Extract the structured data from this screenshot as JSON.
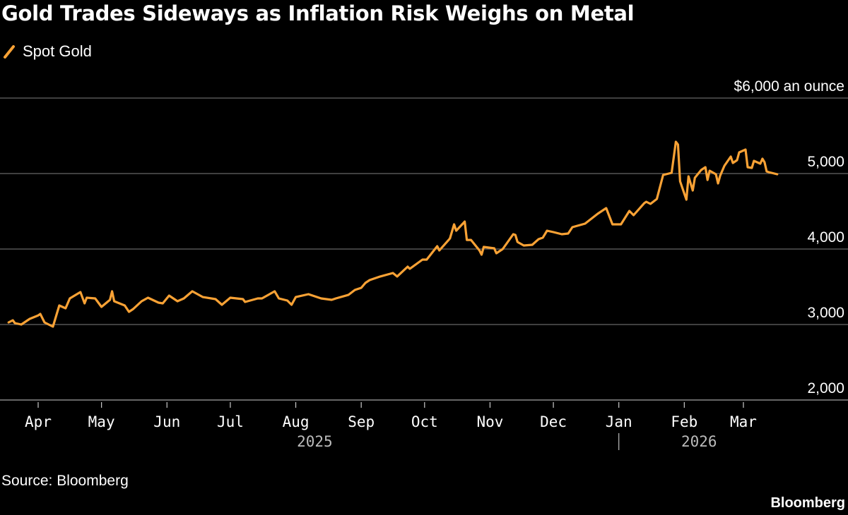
{
  "title": "Gold Trades Sideways as Inflation Risk Weighs on Metal",
  "source": "Source: Bloomberg",
  "logo": "Bloomberg",
  "colors": {
    "background": "#000000",
    "series": "#f9a235",
    "grid": "#666666"
  },
  "chart_data": {
    "type": "line",
    "title": "Gold Trades Sideways as Inflation Risk Weighs on Metal",
    "legend": {
      "position": "top-left",
      "icon": "slash-line-icon"
    },
    "y_unit_label": "$6,000 an ounce",
    "ylim": [
      2000,
      6000
    ],
    "y_ticks": [
      {
        "value": 6000,
        "label": "$6,000 an ounce"
      },
      {
        "value": 5000,
        "label": "5,000"
      },
      {
        "value": 4000,
        "label": "4,000"
      },
      {
        "value": 3000,
        "label": "3,000"
      },
      {
        "value": 2000,
        "label": "2,000"
      }
    ],
    "y_axis_side": "right",
    "grid": true,
    "x_ticks": [
      {
        "date": "2025-04-01",
        "label": "Apr"
      },
      {
        "date": "2025-05-01",
        "label": "May"
      },
      {
        "date": "2025-06-01",
        "label": "Jun"
      },
      {
        "date": "2025-07-01",
        "label": "Jul"
      },
      {
        "date": "2025-08-01",
        "label": "Aug"
      },
      {
        "date": "2025-09-01",
        "label": "Sep"
      },
      {
        "date": "2025-10-01",
        "label": "Oct"
      },
      {
        "date": "2025-11-01",
        "label": "Nov"
      },
      {
        "date": "2025-12-01",
        "label": "Dec"
      },
      {
        "date": "2026-01-01",
        "label": "Jan"
      },
      {
        "date": "2026-02-01",
        "label": "Feb"
      },
      {
        "date": "2026-03-01",
        "label": "Mar"
      }
    ],
    "year_labels": [
      {
        "date": "2025-08-10",
        "label": "2025"
      },
      {
        "date": "2026-02-08",
        "label": "2026"
      }
    ],
    "year_divider": "2026-01-01",
    "series": [
      {
        "name": "Spot Gold",
        "color": "#f9a235",
        "points": [
          [
            "2025-03-18",
            3028
          ],
          [
            "2025-03-20",
            3056
          ],
          [
            "2025-03-21",
            3019
          ],
          [
            "2025-03-24",
            3000
          ],
          [
            "2025-03-28",
            3075
          ],
          [
            "2025-04-01",
            3121
          ],
          [
            "2025-04-02",
            3140
          ],
          [
            "2025-04-04",
            3028
          ],
          [
            "2025-04-08",
            2972
          ],
          [
            "2025-04-11",
            3252
          ],
          [
            "2025-04-14",
            3215
          ],
          [
            "2025-04-16",
            3346
          ],
          [
            "2025-04-21",
            3430
          ],
          [
            "2025-04-23",
            3280
          ],
          [
            "2025-04-24",
            3355
          ],
          [
            "2025-04-28",
            3346
          ],
          [
            "2025-05-01",
            3234
          ],
          [
            "2025-05-05",
            3327
          ],
          [
            "2025-05-06",
            3440
          ],
          [
            "2025-05-07",
            3308
          ],
          [
            "2025-05-12",
            3252
          ],
          [
            "2025-05-14",
            3168
          ],
          [
            "2025-05-16",
            3206
          ],
          [
            "2025-05-20",
            3308
          ],
          [
            "2025-05-23",
            3355
          ],
          [
            "2025-05-28",
            3290
          ],
          [
            "2025-05-30",
            3280
          ],
          [
            "2025-06-02",
            3383
          ],
          [
            "2025-06-06",
            3308
          ],
          [
            "2025-06-09",
            3346
          ],
          [
            "2025-06-13",
            3440
          ],
          [
            "2025-06-18",
            3364
          ],
          [
            "2025-06-24",
            3336
          ],
          [
            "2025-06-27",
            3262
          ],
          [
            "2025-07-01",
            3355
          ],
          [
            "2025-07-07",
            3336
          ],
          [
            "2025-07-08",
            3299
          ],
          [
            "2025-07-14",
            3346
          ],
          [
            "2025-07-16",
            3346
          ],
          [
            "2025-07-22",
            3440
          ],
          [
            "2025-07-24",
            3346
          ],
          [
            "2025-07-28",
            3318
          ],
          [
            "2025-07-30",
            3262
          ],
          [
            "2025-08-01",
            3364
          ],
          [
            "2025-08-07",
            3402
          ],
          [
            "2025-08-13",
            3346
          ],
          [
            "2025-08-18",
            3327
          ],
          [
            "2025-08-20",
            3346
          ],
          [
            "2025-08-26",
            3393
          ],
          [
            "2025-08-29",
            3458
          ],
          [
            "2025-09-01",
            3486
          ],
          [
            "2025-09-03",
            3551
          ],
          [
            "2025-09-05",
            3589
          ],
          [
            "2025-09-10",
            3636
          ],
          [
            "2025-09-16",
            3682
          ],
          [
            "2025-09-18",
            3636
          ],
          [
            "2025-09-23",
            3766
          ],
          [
            "2025-09-24",
            3738
          ],
          [
            "2025-09-30",
            3860
          ],
          [
            "2025-10-02",
            3860
          ],
          [
            "2025-10-07",
            4037
          ],
          [
            "2025-10-08",
            3981
          ],
          [
            "2025-10-13",
            4140
          ],
          [
            "2025-10-15",
            4327
          ],
          [
            "2025-10-16",
            4243
          ],
          [
            "2025-10-20",
            4364
          ],
          [
            "2025-10-21",
            4121
          ],
          [
            "2025-10-23",
            4121
          ],
          [
            "2025-10-27",
            3981
          ],
          [
            "2025-10-28",
            3925
          ],
          [
            "2025-10-29",
            4028
          ],
          [
            "2025-11-03",
            4009
          ],
          [
            "2025-11-04",
            3944
          ],
          [
            "2025-11-07",
            4000
          ],
          [
            "2025-11-12",
            4196
          ],
          [
            "2025-11-13",
            4187
          ],
          [
            "2025-11-14",
            4093
          ],
          [
            "2025-11-17",
            4047
          ],
          [
            "2025-11-21",
            4056
          ],
          [
            "2025-11-24",
            4131
          ],
          [
            "2025-11-26",
            4150
          ],
          [
            "2025-11-28",
            4243
          ],
          [
            "2025-12-01",
            4224
          ],
          [
            "2025-12-05",
            4196
          ],
          [
            "2025-12-08",
            4206
          ],
          [
            "2025-12-10",
            4290
          ],
          [
            "2025-12-16",
            4336
          ],
          [
            "2025-12-22",
            4467
          ],
          [
            "2025-12-26",
            4542
          ],
          [
            "2025-12-29",
            4327
          ],
          [
            "2026-01-02",
            4327
          ],
          [
            "2026-01-06",
            4505
          ],
          [
            "2026-01-08",
            4449
          ],
          [
            "2026-01-13",
            4607
          ],
          [
            "2026-01-14",
            4626
          ],
          [
            "2026-01-16",
            4598
          ],
          [
            "2026-01-19",
            4664
          ],
          [
            "2026-01-22",
            4981
          ],
          [
            "2026-01-26",
            5009
          ],
          [
            "2026-01-28",
            5421
          ],
          [
            "2026-01-29",
            5383
          ],
          [
            "2026-01-30",
            4897
          ],
          [
            "2026-02-02",
            4654
          ],
          [
            "2026-02-03",
            4963
          ],
          [
            "2026-02-05",
            4776
          ],
          [
            "2026-02-06",
            4944
          ],
          [
            "2026-02-09",
            5047
          ],
          [
            "2026-02-11",
            5084
          ],
          [
            "2026-02-12",
            4916
          ],
          [
            "2026-02-13",
            5037
          ],
          [
            "2026-02-16",
            4991
          ],
          [
            "2026-02-17",
            4869
          ],
          [
            "2026-02-18",
            4972
          ],
          [
            "2026-02-20",
            5103
          ],
          [
            "2026-02-23",
            5224
          ],
          [
            "2026-02-24",
            5140
          ],
          [
            "2026-02-26",
            5178
          ],
          [
            "2026-02-27",
            5280
          ],
          [
            "2026-03-02",
            5318
          ],
          [
            "2026-03-03",
            5084
          ],
          [
            "2026-03-05",
            5075
          ],
          [
            "2026-03-06",
            5168
          ],
          [
            "2026-03-09",
            5131
          ],
          [
            "2026-03-10",
            5196
          ],
          [
            "2026-03-11",
            5150
          ],
          [
            "2026-03-12",
            5028
          ],
          [
            "2026-03-13",
            5019
          ],
          [
            "2026-03-17",
            4991
          ]
        ]
      }
    ]
  }
}
